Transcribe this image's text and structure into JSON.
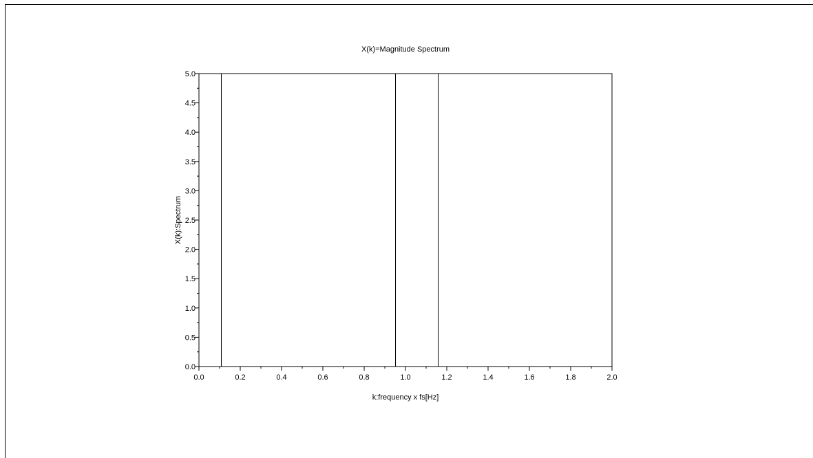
{
  "chart_data": {
    "type": "bar",
    "title": "X(k)=Magnitude Spectrum",
    "xlabel": "k:frequency x fs[Hz]",
    "ylabel": "X(k):Spectrum",
    "xlim": [
      0.0,
      2.0
    ],
    "ylim": [
      0.0,
      5.0
    ],
    "xticks": [
      "0.0",
      "0.2",
      "0.4",
      "0.6",
      "0.8",
      "1.0",
      "1.2",
      "1.4",
      "1.6",
      "1.8",
      "2.0"
    ],
    "yticks": [
      "0.0",
      "0.5",
      "1.0",
      "1.5",
      "2.0",
      "2.5",
      "3.0",
      "3.5",
      "4.0",
      "4.5",
      "5.0"
    ],
    "x_minor_step": 0.1,
    "y_minor_step": 0.25,
    "grid": false,
    "series": [
      {
        "x": [
          0.105,
          0.95,
          1.158
        ],
        "values": [
          5.0,
          5.0,
          5.0
        ],
        "color": "#000000"
      }
    ]
  }
}
